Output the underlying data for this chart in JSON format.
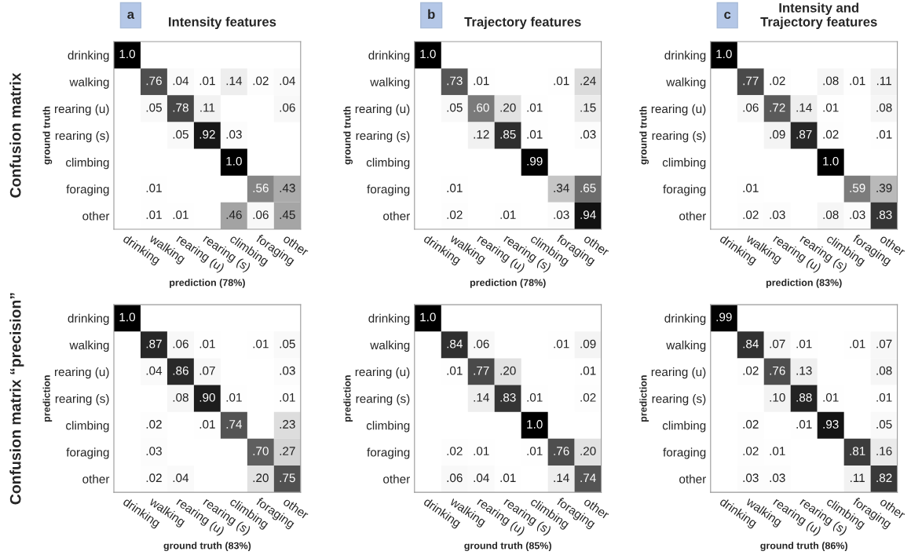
{
  "chart_data": [
    {
      "type": "heatmap",
      "title": "Intensity features",
      "xlabel": "prediction (78%)",
      "ylabel": "ground truth",
      "annotations": [
        "a",
        "Confusion matrix"
      ],
      "categories": [
        "drinking",
        "walking",
        "rearing (u)",
        "rearing (s)",
        "climbing",
        "foraging",
        "other"
      ],
      "y_categories": [
        "drinking",
        "walking",
        "rearing (u)",
        "rearing (s)",
        "climbing",
        "foraging",
        "other"
      ],
      "cells": [
        [
          1.0,
          null,
          null,
          null,
          null,
          null,
          null
        ],
        [
          null,
          0.76,
          0.04,
          0.01,
          0.14,
          0.02,
          0.04
        ],
        [
          null,
          0.05,
          0.78,
          0.11,
          null,
          null,
          0.06
        ],
        [
          null,
          null,
          0.05,
          0.92,
          0.03,
          null,
          null
        ],
        [
          null,
          null,
          null,
          null,
          1.0,
          null,
          null
        ],
        [
          null,
          0.01,
          null,
          null,
          null,
          0.56,
          0.43
        ],
        [
          null,
          0.01,
          0.01,
          null,
          0.46,
          0.06,
          0.45
        ]
      ],
      "cell_labels": [
        [
          "1.0",
          null,
          null,
          null,
          null,
          null,
          null
        ],
        [
          null,
          ".76",
          ".04",
          ".01",
          ".14",
          ".02",
          ".04"
        ],
        [
          null,
          ".05",
          ".78",
          ".11",
          null,
          null,
          ".06"
        ],
        [
          null,
          null,
          ".05",
          ".92",
          ".03",
          null,
          null
        ],
        [
          null,
          null,
          null,
          null,
          "1.0",
          null,
          null
        ],
        [
          null,
          ".01",
          null,
          null,
          null,
          ".56",
          ".43"
        ],
        [
          null,
          ".01",
          ".01",
          null,
          ".46",
          ".06",
          ".45"
        ]
      ]
    },
    {
      "type": "heatmap",
      "title": "Trajectory features",
      "xlabel": "prediction (78%)",
      "ylabel": "ground truth",
      "annotations": [
        "b"
      ],
      "categories": [
        "drinking",
        "walking",
        "rearing (u)",
        "rearing (s)",
        "climbing",
        "foraging",
        "other"
      ],
      "y_categories": [
        "drinking",
        "walking",
        "rearing (u)",
        "rearing (s)",
        "climbing",
        "foraging",
        "other"
      ],
      "cells": [
        [
          1.0,
          null,
          null,
          null,
          null,
          null,
          null
        ],
        [
          null,
          0.73,
          0.01,
          null,
          null,
          0.01,
          0.24
        ],
        [
          null,
          0.05,
          0.6,
          0.2,
          0.01,
          null,
          0.15
        ],
        [
          null,
          null,
          0.12,
          0.85,
          0.01,
          null,
          0.03
        ],
        [
          null,
          null,
          null,
          null,
          0.99,
          null,
          null
        ],
        [
          null,
          0.01,
          null,
          null,
          null,
          0.34,
          0.65
        ],
        [
          null,
          0.02,
          null,
          0.01,
          null,
          0.03,
          0.94
        ]
      ],
      "cell_labels": [
        [
          "1.0",
          null,
          null,
          null,
          null,
          null,
          null
        ],
        [
          null,
          ".73",
          ".01",
          null,
          null,
          ".01",
          ".24"
        ],
        [
          null,
          ".05",
          ".60",
          ".20",
          ".01",
          null,
          ".15"
        ],
        [
          null,
          null,
          ".12",
          ".85",
          ".01",
          null,
          ".03"
        ],
        [
          null,
          null,
          null,
          null,
          ".99",
          null,
          null
        ],
        [
          null,
          ".01",
          null,
          null,
          null,
          ".34",
          ".65"
        ],
        [
          null,
          ".02",
          null,
          ".01",
          null,
          ".03",
          ".94"
        ]
      ]
    },
    {
      "type": "heatmap",
      "title": "Intensity and\nTrajectory features",
      "xlabel": "prediction (83%)",
      "ylabel": "ground truth",
      "annotations": [
        "c"
      ],
      "categories": [
        "drinking",
        "walking",
        "rearing (u)",
        "rearing (s)",
        "climbing",
        "foraging",
        "other"
      ],
      "y_categories": [
        "drinking",
        "walking",
        "rearing (u)",
        "rearing (s)",
        "climbing",
        "foraging",
        "other"
      ],
      "cells": [
        [
          1.0,
          null,
          null,
          null,
          null,
          null,
          null
        ],
        [
          null,
          0.77,
          0.02,
          null,
          0.08,
          0.01,
          0.11
        ],
        [
          null,
          0.06,
          0.72,
          0.14,
          0.01,
          null,
          0.08
        ],
        [
          null,
          null,
          0.09,
          0.87,
          0.02,
          null,
          0.01
        ],
        [
          null,
          null,
          null,
          null,
          1.0,
          null,
          null
        ],
        [
          null,
          0.01,
          null,
          null,
          null,
          0.59,
          0.39
        ],
        [
          null,
          0.02,
          0.03,
          null,
          0.08,
          0.03,
          0.83
        ]
      ],
      "cell_labels": [
        [
          "1.0",
          null,
          null,
          null,
          null,
          null,
          null
        ],
        [
          null,
          ".77",
          ".02",
          null,
          ".08",
          ".01",
          ".11"
        ],
        [
          null,
          ".06",
          ".72",
          ".14",
          ".01",
          null,
          ".08"
        ],
        [
          null,
          null,
          ".09",
          ".87",
          ".02",
          null,
          ".01"
        ],
        [
          null,
          null,
          null,
          null,
          "1.0",
          null,
          null
        ],
        [
          null,
          ".01",
          null,
          null,
          null,
          ".59",
          ".39"
        ],
        [
          null,
          ".02",
          ".03",
          null,
          ".08",
          ".03",
          ".83"
        ]
      ]
    },
    {
      "type": "heatmap",
      "xlabel": "ground truth (83%)",
      "ylabel": "prediction",
      "annotations": [
        "Confusion matrix “precision”"
      ],
      "categories": [
        "drinking",
        "walking",
        "rearing (u)",
        "rearing (s)",
        "climbing",
        "foraging",
        "other"
      ],
      "y_categories": [
        "drinking",
        "walking",
        "rearing (u)",
        "rearing (s)",
        "climbing",
        "foraging",
        "other"
      ],
      "cells": [
        [
          1.0,
          null,
          null,
          null,
          null,
          null,
          null
        ],
        [
          null,
          0.87,
          0.06,
          0.01,
          null,
          0.01,
          0.05
        ],
        [
          null,
          0.04,
          0.86,
          0.07,
          null,
          null,
          0.03
        ],
        [
          null,
          null,
          0.08,
          0.9,
          0.01,
          null,
          0.01
        ],
        [
          null,
          0.02,
          null,
          0.01,
          0.74,
          null,
          0.23
        ],
        [
          null,
          0.03,
          null,
          null,
          null,
          0.7,
          0.27
        ],
        [
          null,
          0.02,
          0.04,
          null,
          null,
          0.2,
          0.75
        ]
      ],
      "cell_labels": [
        [
          "1.0",
          null,
          null,
          null,
          null,
          null,
          null
        ],
        [
          null,
          ".87",
          ".06",
          ".01",
          null,
          ".01",
          ".05"
        ],
        [
          null,
          ".04",
          ".86",
          ".07",
          null,
          null,
          ".03"
        ],
        [
          null,
          null,
          ".08",
          ".90",
          ".01",
          null,
          ".01"
        ],
        [
          null,
          ".02",
          null,
          ".01",
          ".74",
          null,
          ".23"
        ],
        [
          null,
          ".03",
          null,
          null,
          null,
          ".70",
          ".27"
        ],
        [
          null,
          ".02",
          ".04",
          null,
          null,
          ".20",
          ".75"
        ]
      ]
    },
    {
      "type": "heatmap",
      "xlabel": "ground truth (85%)",
      "ylabel": "prediction",
      "categories": [
        "drinking",
        "walking",
        "rearing (u)",
        "rearing (s)",
        "climbing",
        "foraging",
        "other"
      ],
      "y_categories": [
        "drinking",
        "walking",
        "rearing (u)",
        "rearing (s)",
        "climbing",
        "foraging",
        "other"
      ],
      "cells": [
        [
          1.0,
          null,
          null,
          null,
          null,
          null,
          null
        ],
        [
          null,
          0.84,
          0.06,
          null,
          null,
          0.01,
          0.09
        ],
        [
          null,
          0.01,
          0.77,
          0.2,
          null,
          null,
          0.01
        ],
        [
          null,
          null,
          0.14,
          0.83,
          0.01,
          null,
          0.02
        ],
        [
          null,
          null,
          null,
          null,
          1.0,
          null,
          null
        ],
        [
          null,
          0.02,
          0.01,
          null,
          0.01,
          0.76,
          0.2
        ],
        [
          null,
          0.06,
          0.04,
          0.01,
          null,
          0.14,
          0.74
        ]
      ],
      "cell_labels": [
        [
          "1.0",
          null,
          null,
          null,
          null,
          null,
          null
        ],
        [
          null,
          ".84",
          ".06",
          null,
          null,
          ".01",
          ".09"
        ],
        [
          null,
          ".01",
          ".77",
          ".20",
          null,
          null,
          ".01"
        ],
        [
          null,
          null,
          ".14",
          ".83",
          ".01",
          null,
          ".02"
        ],
        [
          null,
          null,
          null,
          null,
          "1.0",
          null,
          null
        ],
        [
          null,
          ".02",
          ".01",
          null,
          ".01",
          ".76",
          ".20"
        ],
        [
          null,
          ".06",
          ".04",
          ".01",
          null,
          ".14",
          ".74"
        ]
      ]
    },
    {
      "type": "heatmap",
      "xlabel": "ground truth (86%)",
      "ylabel": "prediction",
      "categories": [
        "drinking",
        "walking",
        "rearing (u)",
        "rearing (s)",
        "climbing",
        "foraging",
        "other"
      ],
      "y_categories": [
        "drinking",
        "walking",
        "rearing (u)",
        "rearing (s)",
        "climbing",
        "foraging",
        "other"
      ],
      "cells": [
        [
          0.99,
          null,
          null,
          null,
          null,
          null,
          null
        ],
        [
          null,
          0.84,
          0.07,
          0.01,
          null,
          0.01,
          0.07
        ],
        [
          null,
          0.02,
          0.76,
          0.13,
          null,
          null,
          0.08
        ],
        [
          null,
          null,
          0.1,
          0.88,
          0.01,
          null,
          0.01
        ],
        [
          null,
          0.02,
          null,
          0.01,
          0.93,
          null,
          0.05
        ],
        [
          null,
          0.02,
          0.01,
          null,
          null,
          0.81,
          0.16
        ],
        [
          null,
          0.03,
          0.03,
          null,
          null,
          0.11,
          0.82
        ]
      ],
      "cell_labels": [
        [
          ".99",
          null,
          null,
          null,
          null,
          null,
          null
        ],
        [
          null,
          ".84",
          ".07",
          ".01",
          null,
          ".01",
          ".07"
        ],
        [
          null,
          ".02",
          ".76",
          ".13",
          null,
          null,
          ".08"
        ],
        [
          null,
          null,
          ".10",
          ".88",
          ".01",
          null,
          ".01"
        ],
        [
          null,
          ".02",
          null,
          ".01",
          ".93",
          null,
          ".05"
        ],
        [
          null,
          ".02",
          ".01",
          null,
          null,
          ".81",
          ".16"
        ],
        [
          null,
          ".03",
          ".03",
          null,
          null,
          ".11",
          ".82"
        ]
      ]
    }
  ]
}
